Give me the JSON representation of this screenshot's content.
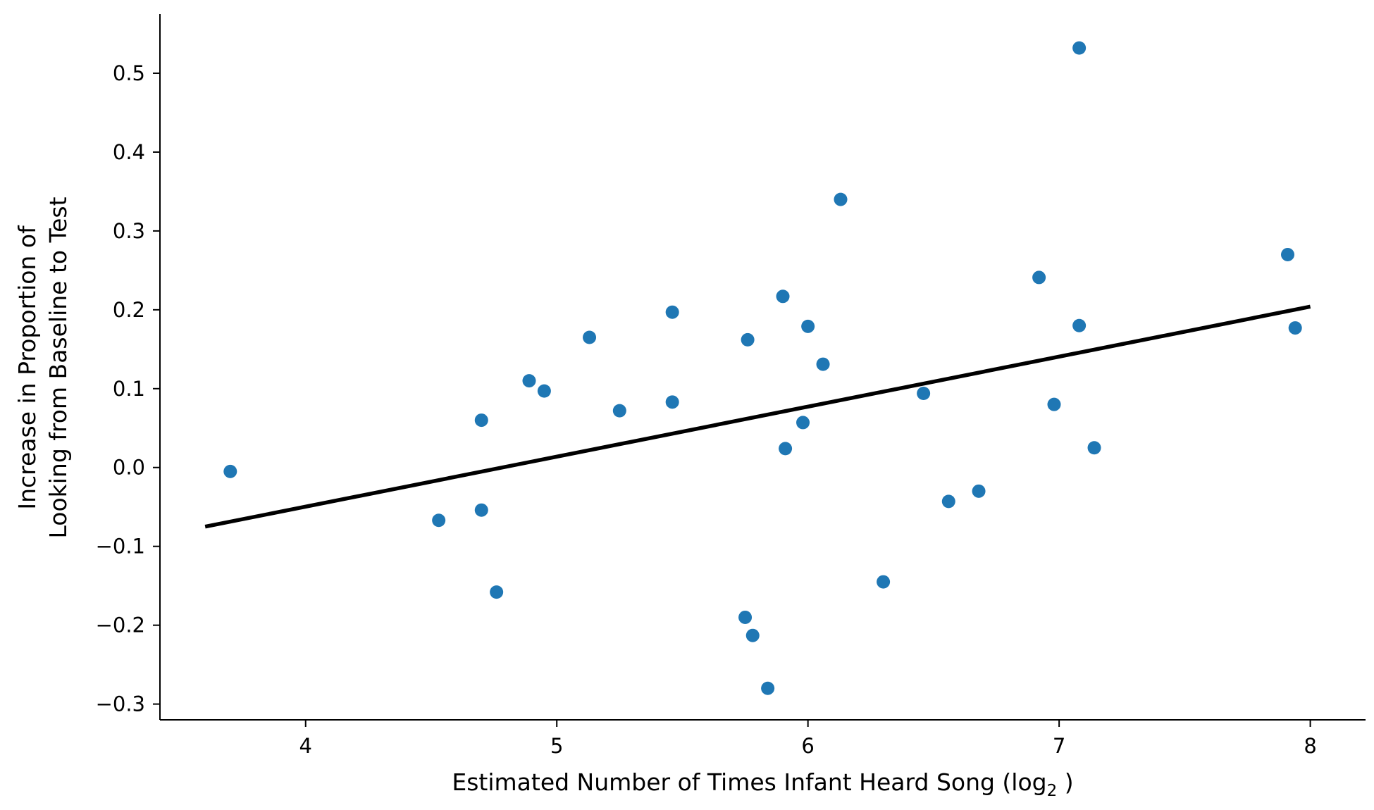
{
  "chart_data": {
    "type": "scatter",
    "title": "",
    "xlabel": "Estimated Number of Times Infant Heard Song (log",
    "xlabel_subscript": "2",
    "xlabel_suffix": " )",
    "ylabel_lines": [
      "Increase in Proportion of",
      "Looking from Baseline to Test"
    ],
    "xlim": [
      3.42,
      8.22
    ],
    "ylim": [
      -0.32,
      0.575
    ],
    "xticks": [
      4,
      5,
      6,
      7,
      8
    ],
    "yticks": [
      -0.3,
      -0.2,
      -0.1,
      0.0,
      0.1,
      0.2,
      0.3,
      0.4,
      0.5
    ],
    "ytick_labels": [
      "−0.3",
      "−0.2",
      "−0.1",
      "0.0",
      "0.1",
      "0.2",
      "0.3",
      "0.4",
      "0.5"
    ],
    "xtick_labels": [
      "4",
      "5",
      "6",
      "7",
      "8"
    ],
    "grid": false,
    "marker_color": "#1f77b4",
    "line_color": "#000000",
    "points": [
      {
        "x": 3.7,
        "y": -0.005
      },
      {
        "x": 4.53,
        "y": -0.067
      },
      {
        "x": 4.7,
        "y": 0.06
      },
      {
        "x": 4.7,
        "y": -0.054
      },
      {
        "x": 4.76,
        "y": -0.158
      },
      {
        "x": 4.89,
        "y": 0.11
      },
      {
        "x": 4.95,
        "y": 0.097
      },
      {
        "x": 5.13,
        "y": 0.165
      },
      {
        "x": 5.25,
        "y": 0.072
      },
      {
        "x": 5.46,
        "y": 0.197
      },
      {
        "x": 5.46,
        "y": 0.083
      },
      {
        "x": 5.75,
        "y": -0.19
      },
      {
        "x": 5.76,
        "y": 0.162
      },
      {
        "x": 5.78,
        "y": -0.213
      },
      {
        "x": 5.84,
        "y": -0.28
      },
      {
        "x": 5.9,
        "y": 0.217
      },
      {
        "x": 5.91,
        "y": 0.024
      },
      {
        "x": 5.98,
        "y": 0.057
      },
      {
        "x": 6.0,
        "y": 0.179
      },
      {
        "x": 6.06,
        "y": 0.131
      },
      {
        "x": 6.13,
        "y": 0.34
      },
      {
        "x": 6.3,
        "y": -0.145
      },
      {
        "x": 6.46,
        "y": 0.094
      },
      {
        "x": 6.56,
        "y": -0.043
      },
      {
        "x": 6.68,
        "y": -0.03
      },
      {
        "x": 6.92,
        "y": 0.241
      },
      {
        "x": 6.98,
        "y": 0.08
      },
      {
        "x": 7.08,
        "y": 0.18
      },
      {
        "x": 7.08,
        "y": 0.532
      },
      {
        "x": 7.14,
        "y": 0.025
      },
      {
        "x": 7.91,
        "y": 0.27
      },
      {
        "x": 7.94,
        "y": 0.177
      }
    ],
    "fit_line": {
      "x": [
        3.6,
        8.0
      ],
      "y": [
        -0.075,
        0.204
      ]
    }
  }
}
